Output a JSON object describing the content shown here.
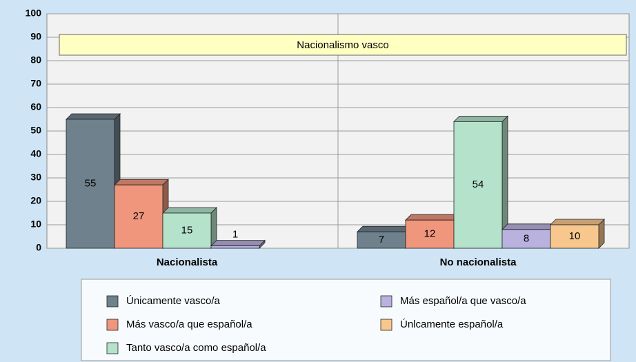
{
  "chart_data": {
    "type": "bar",
    "title": "Nacionalismo vasco",
    "categories": [
      "Nacionalista",
      "No nacionalista"
    ],
    "series": [
      {
        "name": "Únicamente vasco/a",
        "color": "#6e818d",
        "values": [
          55,
          7
        ]
      },
      {
        "name": "Más vasco/a que español/a",
        "color": "#ef967c",
        "values": [
          27,
          12
        ]
      },
      {
        "name": "Tanto vasco/a como español/a",
        "color": "#b4e2ca",
        "values": [
          15,
          54
        ]
      },
      {
        "name": "Más español/a que vasco/a",
        "color": "#b9b1de",
        "values": [
          1,
          8
        ]
      },
      {
        "name": "Únlcamente español/a",
        "color": "#f8c78e",
        "values": [
          null,
          10
        ]
      }
    ],
    "ylim": [
      0,
      100
    ],
    "yticks": [
      0,
      10,
      20,
      30,
      40,
      50,
      60,
      70,
      80,
      90,
      100
    ],
    "grid": true
  }
}
